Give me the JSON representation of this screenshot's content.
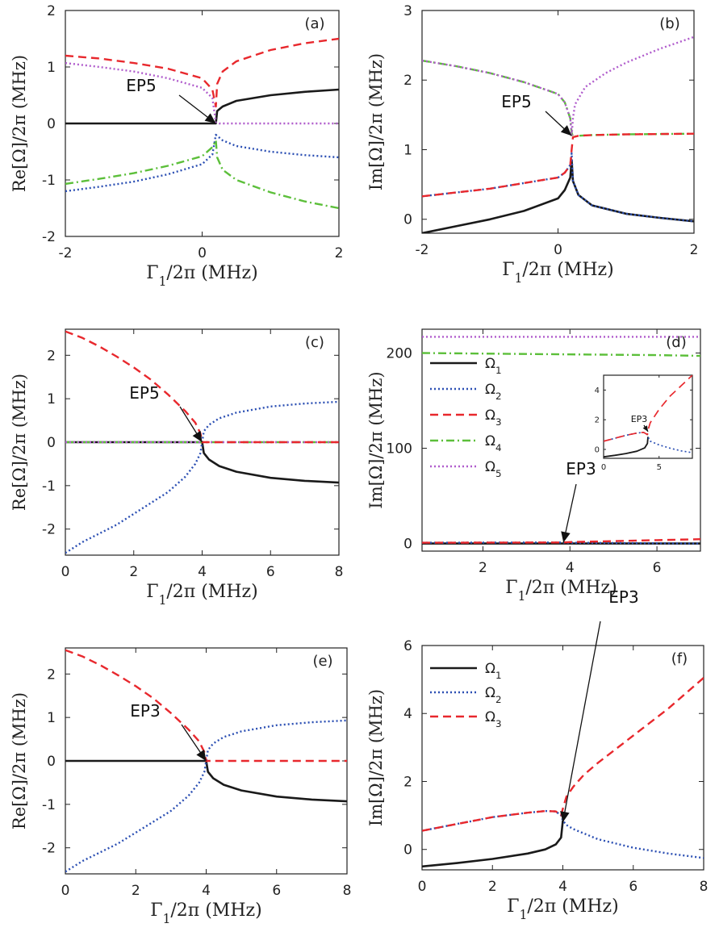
{
  "colors": {
    "omega1": "#1a1a1a",
    "omega2": "#2b4fb3",
    "omega3": "#e8282d",
    "omega4": "#5cbf3a",
    "omega5": "#b05ccc"
  },
  "series_styles": [
    {
      "name": "Ω1",
      "key": "omega1",
      "dash": ""
    },
    {
      "name": "Ω2",
      "key": "omega2",
      "dash": "2,3"
    },
    {
      "name": "Ω3",
      "key": "omega3",
      "dash": "10,6"
    },
    {
      "name": "Ω4",
      "key": "omega4",
      "dash": "10,4,2,4"
    },
    {
      "name": "Ω5",
      "key": "omega5",
      "dash": "2,3"
    }
  ],
  "chart_data": [
    {
      "panel": "(a)",
      "type": "line",
      "xlabel": "Γ1/2π (MHz)",
      "ylabel": "Re[Ω]/2π (MHz)",
      "xlim": [
        -2,
        2
      ],
      "ylim": [
        -2,
        2
      ],
      "xticks": [
        -2,
        0,
        2
      ],
      "yticks": [
        -2,
        -1,
        0,
        1,
        2
      ],
      "annotation": {
        "text": "EP5",
        "x": 0.2,
        "y": 0.0
      },
      "series": [
        {
          "name": "Ω1",
          "x": [
            -2,
            -1,
            0,
            0.2,
            0.22,
            0.3,
            0.5,
            1,
            1.5,
            2
          ],
          "y": [
            0,
            0,
            0,
            0,
            0.22,
            0.3,
            0.4,
            0.5,
            0.56,
            0.6
          ]
        },
        {
          "name": "Ω2",
          "x": [
            -2,
            -1.5,
            -1,
            -0.5,
            0,
            0.15,
            0.2,
            0.22,
            0.3,
            0.5,
            1,
            1.5,
            2
          ],
          "y": [
            -1.2,
            -1.12,
            -1.03,
            -0.9,
            -0.72,
            -0.55,
            -0.2,
            -0.22,
            -0.3,
            -0.4,
            -0.5,
            -0.56,
            -0.6
          ]
        },
        {
          "name": "Ω3",
          "x": [
            -2,
            -1.5,
            -1,
            -0.5,
            0,
            0.15,
            0.2,
            0.22,
            0.3,
            0.5,
            1,
            1.5,
            2
          ],
          "y": [
            1.2,
            1.15,
            1.07,
            0.97,
            0.8,
            0.6,
            0.3,
            0.7,
            0.92,
            1.1,
            1.3,
            1.42,
            1.5
          ]
        },
        {
          "name": "Ω4",
          "x": [
            -2,
            -1.5,
            -1,
            -0.5,
            0,
            0.15,
            0.2,
            0.22,
            0.3,
            0.5,
            1,
            1.5,
            2
          ],
          "y": [
            -1.07,
            -0.98,
            -0.88,
            -0.75,
            -0.58,
            -0.42,
            -0.3,
            -0.6,
            -0.82,
            -1.0,
            -1.22,
            -1.38,
            -1.5
          ]
        },
        {
          "name": "Ω5",
          "x": [
            -2,
            -1.5,
            -1,
            -0.5,
            0,
            0.15,
            0.2,
            0.25,
            1,
            2
          ],
          "y": [
            1.07,
            1.0,
            0.92,
            0.8,
            0.63,
            0.45,
            0.02,
            0,
            0,
            0
          ]
        }
      ]
    },
    {
      "panel": "(b)",
      "type": "line",
      "xlabel": "Γ1/2π (MHz)",
      "ylabel": "Im[Ω]/2π (MHz)",
      "xlim": [
        -2,
        2
      ],
      "ylim": [
        -0.2,
        3
      ],
      "xticks": [
        -2,
        0,
        2
      ],
      "yticks": [
        0,
        1,
        2,
        3
      ],
      "annotation": {
        "text": "EP5",
        "x": 0.2,
        "y": 1.2
      },
      "series": [
        {
          "name": "Ω1",
          "x": [
            -2,
            -1.5,
            -1,
            -0.5,
            0,
            0.1,
            0.18,
            0.2,
            0.22,
            0.3,
            0.5,
            1,
            1.5,
            2
          ],
          "y": [
            -0.2,
            -0.1,
            0.0,
            0.12,
            0.3,
            0.42,
            0.6,
            0.85,
            0.55,
            0.35,
            0.2,
            0.08,
            0.02,
            -0.03
          ]
        },
        {
          "name": "Ω2",
          "x": [
            -2,
            -1,
            0,
            0.1,
            0.18,
            0.2,
            0.22,
            0.3,
            0.5,
            1,
            1.5,
            2
          ],
          "y": [
            0.33,
            0.44,
            0.6,
            0.67,
            0.78,
            0.95,
            0.55,
            0.35,
            0.2,
            0.08,
            0.02,
            -0.03
          ]
        },
        {
          "name": "Ω3",
          "x": [
            -2,
            -1,
            0,
            0.1,
            0.18,
            0.2,
            0.22,
            0.3,
            0.5,
            1,
            2
          ],
          "y": [
            0.33,
            0.44,
            0.6,
            0.67,
            0.78,
            1.0,
            1.18,
            1.2,
            1.21,
            1.22,
            1.23
          ]
        },
        {
          "name": "Ω4",
          "x": [
            -2,
            -1.5,
            -1,
            -0.5,
            0,
            0.1,
            0.18,
            0.2,
            0.22,
            0.3,
            0.5,
            1,
            2
          ],
          "y": [
            2.28,
            2.2,
            2.1,
            1.97,
            1.8,
            1.68,
            1.45,
            1.25,
            1.18,
            1.2,
            1.21,
            1.22,
            1.23
          ]
        },
        {
          "name": "Ω5",
          "x": [
            -2,
            -1.5,
            -1,
            -0.5,
            0,
            0.1,
            0.18,
            0.2,
            0.22,
            0.25,
            0.4,
            0.7,
            1,
            1.5,
            2
          ],
          "y": [
            2.28,
            2.2,
            2.1,
            1.97,
            1.8,
            1.68,
            1.45,
            1.2,
            1.45,
            1.65,
            1.9,
            2.1,
            2.25,
            2.45,
            2.62
          ]
        }
      ]
    },
    {
      "panel": "(c)",
      "type": "line",
      "xlabel": "Γ1/2π (MHz)",
      "ylabel": "Re[Ω]/2π (MHz)",
      "xlim": [
        0,
        8
      ],
      "ylim": [
        -2.6,
        2.6
      ],
      "xticks": [
        0,
        2,
        4,
        6,
        8
      ],
      "yticks": [
        -2,
        -1,
        0,
        1,
        2
      ],
      "annotation": {
        "text": "EP5",
        "x": 4.0,
        "y": 0.0
      },
      "series": [
        {
          "name": "Ω1",
          "x": [
            0,
            1,
            2,
            3,
            3.9,
            4,
            4.05,
            4.2,
            4.5,
            5,
            6,
            7,
            8
          ],
          "y": [
            0,
            0,
            0,
            0,
            0,
            0,
            -0.25,
            -0.4,
            -0.55,
            -0.68,
            -0.82,
            -0.89,
            -0.93
          ]
        },
        {
          "name": "Ω2",
          "x": [
            0,
            0.5,
            1,
            1.5,
            2,
            2.5,
            3,
            3.5,
            3.8,
            3.95,
            4,
            4.05,
            4.2,
            4.5,
            5,
            6,
            7,
            8
          ],
          "y": [
            -2.55,
            -2.3,
            -2.1,
            -1.9,
            -1.65,
            -1.4,
            -1.15,
            -0.8,
            -0.5,
            -0.25,
            0,
            0.25,
            0.4,
            0.55,
            0.68,
            0.82,
            0.89,
            0.93
          ]
        },
        {
          "name": "Ω3",
          "x": [
            0,
            0.5,
            1,
            1.5,
            2,
            2.5,
            3,
            3.5,
            3.8,
            3.95,
            4,
            4.5,
            6,
            8
          ],
          "y": [
            2.55,
            2.4,
            2.2,
            1.97,
            1.72,
            1.44,
            1.1,
            0.72,
            0.45,
            0.2,
            0,
            0,
            0,
            0
          ]
        },
        {
          "name": "Ω4",
          "x": [
            0,
            8
          ],
          "y": [
            0,
            0
          ]
        },
        {
          "name": "Ω5",
          "x": [
            0,
            8
          ],
          "y": [
            0,
            0
          ]
        }
      ]
    },
    {
      "panel": "(d)",
      "type": "line",
      "xlabel": "Γ1/2π (MHz)",
      "ylabel": "Im[Ω]/2π (MHz)",
      "xlim": [
        0.6,
        7
      ],
      "ylim": [
        -8,
        225
      ],
      "xticks": [
        2,
        4,
        6
      ],
      "yticks": [
        0,
        100,
        200
      ],
      "annotation": {
        "text": "EP3",
        "x": 3.85,
        "y": 1.0
      },
      "legend": [
        "Ω1",
        "Ω2",
        "Ω3",
        "Ω4",
        "Ω5"
      ],
      "series": [
        {
          "name": "Ω1",
          "x": [
            0.6,
            7
          ],
          "y": [
            0,
            0
          ]
        },
        {
          "name": "Ω2",
          "x": [
            0.6,
            3.8,
            4,
            7
          ],
          "y": [
            0.8,
            1.1,
            0.8,
            0
          ]
        },
        {
          "name": "Ω3",
          "x": [
            0.6,
            3.8,
            4,
            5,
            6,
            7
          ],
          "y": [
            0.8,
            1.1,
            1.5,
            2.5,
            3.5,
            4.5
          ]
        },
        {
          "name": "Ω4",
          "x": [
            0.6,
            2,
            4,
            6,
            7
          ],
          "y": [
            200,
            199.4,
            198.6,
            197.8,
            197
          ]
        },
        {
          "name": "Ω5",
          "x": [
            0.6,
            7
          ],
          "y": [
            217,
            217
          ]
        }
      ],
      "inset": {
        "xlim": [
          0,
          8
        ],
        "ylim": [
          -0.6,
          5
        ],
        "xticks": [
          0,
          5
        ],
        "yticks": [
          0,
          2,
          4
        ],
        "annotation": {
          "text": "EP3",
          "x": 4.0,
          "y": 1.2
        },
        "series": [
          {
            "name": "Ω1",
            "x": [
              0,
              1,
              2,
              3,
              3.7,
              3.95,
              4
            ],
            "y": [
              -0.5,
              -0.4,
              -0.28,
              -0.12,
              0.1,
              0.4,
              0.85
            ]
          },
          {
            "name": "Ω2",
            "x": [
              0,
              1,
              2,
              3,
              3.6,
              3.95,
              4,
              4.2,
              5,
              6,
              7,
              8
            ],
            "y": [
              0.55,
              0.75,
              0.95,
              1.1,
              1.15,
              1.0,
              0.85,
              0.55,
              0.3,
              0.08,
              -0.1,
              -0.22
            ]
          },
          {
            "name": "Ω3",
            "x": [
              0,
              1,
              2,
              3,
              3.6,
              3.95,
              4,
              4.2,
              5,
              6,
              7,
              8
            ],
            "y": [
              0.55,
              0.75,
              0.95,
              1.1,
              1.15,
              1.0,
              1.3,
              1.8,
              2.7,
              3.6,
              4.3,
              5.0
            ]
          }
        ]
      }
    },
    {
      "panel": "(e)",
      "type": "line",
      "xlabel": "Γ1/2π (MHz)",
      "ylabel": "Re[Ω]/2π (MHz)",
      "xlim": [
        0,
        8
      ],
      "ylim": [
        -2.6,
        2.6
      ],
      "xticks": [
        0,
        2,
        4,
        6,
        8
      ],
      "yticks": [
        -2,
        -1,
        0,
        1,
        2
      ],
      "annotation": {
        "text": "EP3",
        "x": 4.0,
        "y": 0.0
      },
      "series": [
        {
          "name": "Ω1",
          "x": [
            0,
            1,
            2,
            3,
            3.9,
            4,
            4.05,
            4.2,
            4.5,
            5,
            6,
            7,
            8
          ],
          "y": [
            0,
            0,
            0,
            0,
            0,
            0,
            -0.25,
            -0.4,
            -0.55,
            -0.68,
            -0.82,
            -0.89,
            -0.93
          ]
        },
        {
          "name": "Ω2",
          "x": [
            0,
            0.5,
            1,
            1.5,
            2,
            2.5,
            3,
            3.5,
            3.8,
            3.95,
            4,
            4.05,
            4.2,
            4.5,
            5,
            6,
            7,
            8
          ],
          "y": [
            -2.55,
            -2.3,
            -2.1,
            -1.9,
            -1.65,
            -1.4,
            -1.15,
            -0.8,
            -0.5,
            -0.25,
            0,
            0.25,
            0.4,
            0.55,
            0.68,
            0.82,
            0.89,
            0.93
          ]
        },
        {
          "name": "Ω3",
          "x": [
            0,
            0.5,
            1,
            1.5,
            2,
            2.5,
            3,
            3.5,
            3.8,
            3.95,
            4,
            4.5,
            6,
            8
          ],
          "y": [
            2.55,
            2.4,
            2.2,
            1.97,
            1.72,
            1.44,
            1.1,
            0.72,
            0.45,
            0.2,
            0,
            0,
            0,
            0
          ]
        }
      ]
    },
    {
      "panel": "(f)",
      "type": "line",
      "xlabel": "Γ1/2π (MHz)",
      "ylabel": "Im[Ω]/2π (MHz)",
      "xlim": [
        0,
        8
      ],
      "ylim": [
        -0.6,
        6
      ],
      "xticks": [
        0,
        2,
        4,
        6,
        8
      ],
      "yticks": [
        0,
        2,
        4,
        6
      ],
      "annotation": {
        "text": "EP3",
        "x": 4.0,
        "y": 0.8
      },
      "legend": [
        "Ω1",
        "Ω2",
        "Ω3"
      ],
      "series": [
        {
          "name": "Ω1",
          "x": [
            0,
            1,
            2,
            3,
            3.5,
            3.8,
            3.95,
            4
          ],
          "y": [
            -0.5,
            -0.4,
            -0.28,
            -0.12,
            0.0,
            0.15,
            0.35,
            0.85
          ]
        },
        {
          "name": "Ω2",
          "x": [
            0,
            1,
            2,
            3,
            3.5,
            3.8,
            3.95,
            4,
            4.1,
            4.3,
            5,
            6,
            7,
            8
          ],
          "y": [
            0.55,
            0.75,
            0.95,
            1.08,
            1.13,
            1.12,
            1.0,
            0.85,
            0.72,
            0.6,
            0.3,
            0.05,
            -0.12,
            -0.25
          ]
        },
        {
          "name": "Ω3",
          "x": [
            0,
            1,
            2,
            3,
            3.5,
            3.8,
            3.95,
            4,
            4.1,
            4.3,
            4.6,
            5,
            6,
            7,
            8
          ],
          "y": [
            0.55,
            0.75,
            0.95,
            1.08,
            1.13,
            1.12,
            1.0,
            1.2,
            1.55,
            1.85,
            2.2,
            2.55,
            3.35,
            4.15,
            5.05
          ]
        }
      ]
    }
  ]
}
